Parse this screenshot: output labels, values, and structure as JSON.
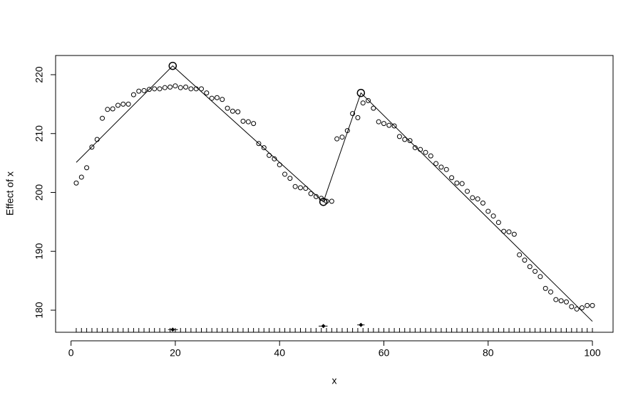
{
  "chart_data": {
    "type": "scatter",
    "xlabel": "x",
    "ylabel": "Effect of x",
    "xlim": [
      -2.96,
      103.96
    ],
    "ylim": [
      176.25,
      223.26
    ],
    "xticks": [
      0,
      20,
      40,
      60,
      80,
      100
    ],
    "yticks": [
      180,
      190,
      200,
      210,
      220
    ],
    "color": "#000000",
    "points": {
      "x": [
        1,
        2,
        3,
        4,
        5,
        6,
        7,
        8,
        9,
        10,
        11,
        12,
        13,
        14,
        15,
        16,
        17,
        18,
        19,
        20,
        21,
        22,
        23,
        24,
        25,
        26,
        27,
        28,
        29,
        30,
        31,
        32,
        33,
        34,
        35,
        36,
        37,
        38,
        39,
        40,
        41,
        42,
        43,
        44,
        45,
        46,
        47,
        48,
        49,
        50,
        51,
        52,
        53,
        54,
        55,
        56,
        57,
        58,
        59,
        60,
        61,
        62,
        63,
        64,
        65,
        66,
        67,
        68,
        69,
        70,
        71,
        72,
        73,
        74,
        75,
        76,
        77,
        78,
        79,
        80,
        81,
        82,
        83,
        84,
        85,
        86,
        87,
        88,
        89,
        90,
        91,
        92,
        93,
        94,
        95,
        96,
        97,
        98,
        99,
        100
      ],
      "y": [
        201.6,
        202.6,
        204.2,
        207.7,
        209.0,
        212.6,
        214.1,
        214.2,
        214.8,
        215.0,
        215.0,
        216.6,
        217.2,
        217.3,
        217.5,
        217.6,
        217.6,
        217.8,
        217.9,
        218.1,
        217.8,
        217.9,
        217.6,
        217.6,
        217.6,
        216.9,
        216.0,
        216.1,
        215.8,
        214.3,
        213.8,
        213.7,
        212.1,
        212.0,
        211.7,
        208.3,
        207.6,
        206.3,
        205.7,
        204.7,
        203.1,
        202.4,
        201.0,
        200.8,
        200.7,
        199.8,
        199.3,
        199.0,
        198.5,
        198.5,
        209.1,
        209.4,
        210.5,
        213.4,
        212.7,
        215.2,
        215.6,
        214.3,
        212.0,
        211.7,
        211.4,
        211.3,
        209.5,
        209.0,
        208.8,
        207.6,
        207.3,
        206.8,
        206.2,
        204.9,
        204.3,
        203.9,
        202.5,
        201.6,
        201.5,
        200.2,
        199.1,
        198.9,
        198.2,
        196.8,
        196.0,
        194.9,
        193.4,
        193.3,
        192.9,
        189.4,
        188.5,
        187.4,
        186.6,
        185.7,
        183.7,
        183.1,
        181.8,
        181.6,
        181.4,
        180.6,
        180.2,
        180.4,
        180.8,
        180.8
      ]
    },
    "fit": {
      "x": [
        1,
        19.5,
        48.4,
        55.6,
        100
      ],
      "y": [
        205.1,
        221.5,
        198.4,
        216.9,
        178.1
      ]
    },
    "breakpoints": {
      "x": [
        19.5,
        48.4,
        55.6
      ],
      "y": [
        176.7,
        177.3,
        177.5
      ],
      "ci_low": [
        18.6,
        47.5,
        54.9
      ],
      "ci_high": [
        20.5,
        49.2,
        56.3
      ]
    }
  }
}
